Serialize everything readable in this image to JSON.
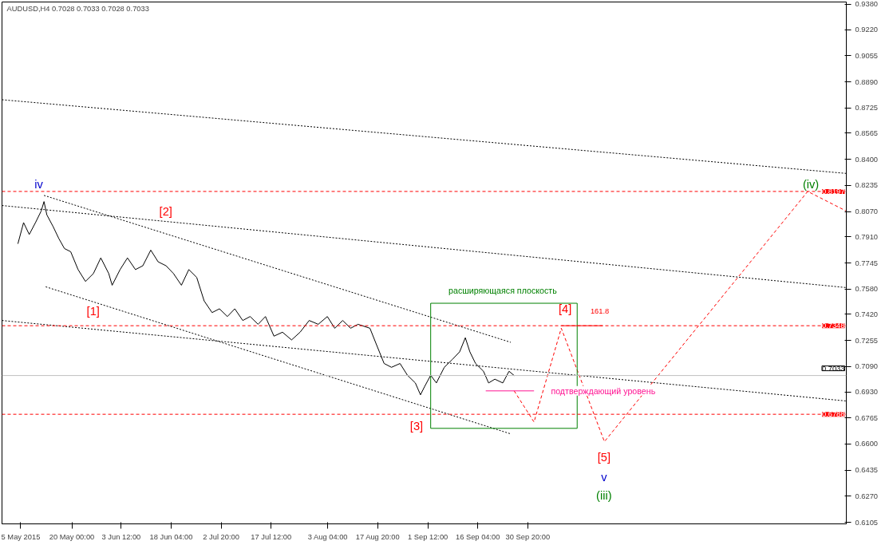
{
  "chart_data": {
    "type": "line",
    "title": "AUDUSD,H4  0.7028 0.7033 0.7028 0.7033",
    "xlim": [
      "2015-04-29T12:00",
      "2016-01-02T08:00"
    ],
    "ylim": [
      0.6095,
      0.9395
    ],
    "xticks": [
      {
        "value": "2015-05-05T00:00",
        "label": "5 May 2015"
      },
      {
        "value": "2015-05-20T00:00",
        "label": "20 May 00:00"
      },
      {
        "value": "2015-06-03T12:00",
        "label": "3 Jun 12:00"
      },
      {
        "value": "2015-06-18T04:00",
        "label": "18 Jun 04:00"
      },
      {
        "value": "2015-07-02T20:00",
        "label": "2 Jul 20:00"
      },
      {
        "value": "2015-07-17T12:00",
        "label": "17 Jul 12:00"
      },
      {
        "value": "2015-08-03T04:00",
        "label": "3 Aug 04:00"
      },
      {
        "value": "2015-08-17T20:00",
        "label": "17 Aug 20:00"
      },
      {
        "value": "2015-09-01T12:00",
        "label": "1 Sep 12:00"
      },
      {
        "value": "2015-09-16T04:00",
        "label": "16 Sep 04:00"
      },
      {
        "value": "2015-09-30T20:00",
        "label": "30 Sep 20:00"
      }
    ],
    "yticks": [
      {
        "value": 0.6105,
        "label": "0.6105"
      },
      {
        "value": 0.627,
        "label": "0.6270"
      },
      {
        "value": 0.6435,
        "label": "0.6435"
      },
      {
        "value": 0.66,
        "label": "0.6600"
      },
      {
        "value": 0.6765,
        "label": "0.6765"
      },
      {
        "value": 0.693,
        "label": "0.6930"
      },
      {
        "value": 0.709,
        "label": "0.7090"
      },
      {
        "value": 0.7255,
        "label": "0.7255"
      },
      {
        "value": 0.742,
        "label": "0.7420"
      },
      {
        "value": 0.758,
        "label": "0.7580"
      },
      {
        "value": 0.7745,
        "label": "0.7745"
      },
      {
        "value": 0.791,
        "label": "0.7910"
      },
      {
        "value": 0.807,
        "label": "0.8070"
      },
      {
        "value": 0.8235,
        "label": "0.8235"
      },
      {
        "value": 0.84,
        "label": "0.8400"
      },
      {
        "value": 0.8565,
        "label": "0.8565"
      },
      {
        "value": 0.8725,
        "label": "0.8725"
      },
      {
        "value": 0.889,
        "label": "0.8890"
      },
      {
        "value": 0.9055,
        "label": "0.9055"
      },
      {
        "value": 0.922,
        "label": "0.9220"
      },
      {
        "value": 0.938,
        "label": "0.9380"
      }
    ],
    "grid": false,
    "series": [
      {
        "color": "#000000",
        "line_style": "solid",
        "x": [
          "2015-05-04T04:00",
          "2015-05-05T20:00",
          "2015-05-07T12:00",
          "2015-05-09T08:00",
          "2015-05-11T00:00",
          "2015-05-11T20:00",
          "2015-05-12T16:00",
          "2015-05-14T12:00",
          "2015-05-16T04:00",
          "2015-05-17T20:00",
          "2015-05-19T16:00",
          "2015-05-21T20:00",
          "2015-05-24T00:00",
          "2015-05-26T08:00",
          "2015-05-28T12:00",
          "2015-05-30T20:00",
          "2015-05-31T20:00",
          "2015-06-03T04:00",
          "2015-06-05T08:00",
          "2015-06-07T16:00",
          "2015-06-09T20:00",
          "2015-06-12T04:00",
          "2015-06-14T08:00",
          "2015-06-16T16:00",
          "2015-06-18T20:00",
          "2015-06-21T04:00",
          "2015-06-23T08:00",
          "2015-06-25T16:00",
          "2015-06-27T20:00",
          "2015-06-30T04:00",
          "2015-07-02T08:00",
          "2015-07-04T16:00",
          "2015-07-06T20:00",
          "2015-07-09T04:00",
          "2015-07-11T08:00",
          "2015-07-13T16:00",
          "2015-07-15T20:00",
          "2015-07-18T08:00",
          "2015-07-20T20:00",
          "2015-07-23T12:00",
          "2015-07-26T00:00",
          "2015-07-28T16:00",
          "2015-07-31T08:00",
          "2015-08-03T00:00",
          "2015-08-05T04:00",
          "2015-08-07T12:00",
          "2015-08-09T20:00",
          "2015-08-12T00:00",
          "2015-08-15T12:00",
          "2015-08-17T08:00",
          "2015-08-19T16:00",
          "2015-08-21T20:00",
          "2015-08-24T08:00",
          "2015-08-26T12:00",
          "2015-08-28T20:00",
          "2015-08-30T08:00",
          "2015-08-31T12:00",
          "2015-09-02T08:00",
          "2015-09-04T00:00",
          "2015-09-06T08:00",
          "2015-09-08T16:00",
          "2015-09-10T20:00",
          "2015-09-12T12:00",
          "2015-09-13T20:00",
          "2015-09-15T12:00",
          "2015-09-17T20:00",
          "2015-09-19T08:00",
          "2015-09-21T04:00",
          "2015-09-23T12:00",
          "2015-09-25T08:00",
          "2015-09-26T20:00"
        ],
        "values": [
          0.7866,
          0.8,
          0.7925,
          0.8,
          0.8073,
          0.8133,
          0.8049,
          0.7975,
          0.79,
          0.7836,
          0.7816,
          0.7703,
          0.7628,
          0.7678,
          0.7777,
          0.7678,
          0.7604,
          0.7703,
          0.7777,
          0.7703,
          0.7727,
          0.7826,
          0.7752,
          0.7727,
          0.7678,
          0.7604,
          0.7703,
          0.7653,
          0.7505,
          0.7431,
          0.7455,
          0.7406,
          0.7455,
          0.7381,
          0.7406,
          0.7357,
          0.7406,
          0.7282,
          0.7307,
          0.7258,
          0.7307,
          0.7381,
          0.7357,
          0.7406,
          0.7332,
          0.7381,
          0.7332,
          0.7357,
          0.7332,
          0.7233,
          0.7109,
          0.7085,
          0.7109,
          0.7035,
          0.6986,
          0.6911,
          0.6961,
          0.7035,
          0.6986,
          0.7085,
          0.7134,
          0.7183,
          0.7272,
          0.7183,
          0.7109,
          0.706,
          0.6986,
          0.701,
          0.6986,
          0.706,
          0.7033
        ]
      },
      {
        "color": "#000000",
        "line_style": "dotted",
        "x": [
          "2015-04-29T12:00",
          "2016-01-02T08:00"
        ],
        "values": [
          0.8777,
          0.8311
        ]
      },
      {
        "color": "#000000",
        "line_style": "dotted",
        "x": [
          "2015-04-29T12:00",
          "2016-01-02T08:00"
        ],
        "values": [
          0.8108,
          0.7589
        ]
      },
      {
        "color": "#000000",
        "line_style": "dotted",
        "x": [
          "2015-05-11T20:00",
          "2015-09-25T20:00"
        ],
        "values": [
          0.8172,
          0.7243
        ]
      },
      {
        "color": "#000000",
        "line_style": "dotted",
        "x": [
          "2015-04-29T12:00",
          "2016-01-02T08:00"
        ],
        "values": [
          0.7381,
          0.6872
        ]
      },
      {
        "color": "#000000",
        "line_style": "dotted",
        "x": [
          "2015-05-12T08:00",
          "2015-09-25T20:00"
        ],
        "values": [
          0.7594,
          0.6664
        ]
      },
      {
        "color": "#ff0000",
        "line_style": "dashed",
        "x": [
          "2015-09-26T20:00",
          "2015-10-02T16:00",
          "2015-10-10T16:00",
          "2015-10-23T08:00",
          "2015-12-22T00:00",
          "2016-01-02T08:00"
        ],
        "values": [
          0.6936,
          0.6739,
          0.7332,
          0.6615,
          0.8197,
          0.8073
        ]
      },
      {
        "color": "#ff1493",
        "line_style": "solid",
        "x": [
          "2015-09-18T12:00",
          "2015-10-02T16:00"
        ],
        "values": [
          0.6936,
          0.6936
        ]
      },
      {
        "color": "#008000",
        "line_style": "solid",
        "x": [
          "2015-09-02T08:00",
          "2015-09-02T08:00",
          "2015-10-15T08:00",
          "2015-10-15T08:00"
        ],
        "values": [
          0.6699,
          0.749,
          0.749,
          0.6699
        ]
      },
      {
        "color": "#008000",
        "line_style": "solid",
        "x": [
          "2015-09-02T08:00",
          "2015-10-15T08:00"
        ],
        "values": [
          0.6699,
          0.6699
        ]
      },
      {
        "color": "#ff0000",
        "line_style": "solid",
        "x": [
          "2015-10-10T16:00",
          "2015-10-22T20:00"
        ],
        "values": [
          0.7348,
          0.7348
        ]
      }
    ],
    "ref_lines": [
      {
        "axis": "y",
        "value": 0.8197,
        "label": "0.8197",
        "color": "#ff0000",
        "line_style": "dashed"
      },
      {
        "axis": "y",
        "value": 0.7348,
        "label": "0.7348",
        "color": "#ff0000",
        "line_style": "dashed"
      },
      {
        "axis": "y",
        "value": 0.7033,
        "label": "0.7033",
        "color": "#c0c0c0",
        "line_style": "solid"
      },
      {
        "axis": "y",
        "value": 0.6788,
        "label": "0.6788",
        "color": "#ff0000",
        "line_style": "dashed"
      }
    ],
    "annotations": [
      "iv",
      "[2]",
      "[1]",
      "[3]",
      "[4]",
      "161.8",
      "[5]",
      "v",
      "(iii)",
      "(iv)",
      "расширяющаяся плоскость",
      "подтверждающий уровень"
    ]
  }
}
